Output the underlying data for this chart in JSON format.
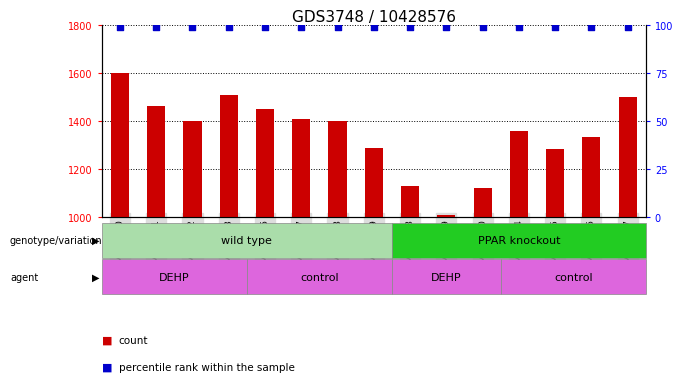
{
  "title": "GDS3748 / 10428576",
  "samples": [
    "GSM461980",
    "GSM461981",
    "GSM461982",
    "GSM461983",
    "GSM461976",
    "GSM461977",
    "GSM461978",
    "GSM461979",
    "GSM461988",
    "GSM461989",
    "GSM461990",
    "GSM461984",
    "GSM461985",
    "GSM461986",
    "GSM461987"
  ],
  "counts": [
    1600,
    1465,
    1400,
    1510,
    1450,
    1410,
    1400,
    1290,
    1130,
    1010,
    1120,
    1360,
    1285,
    1335,
    1500
  ],
  "percentile_ranks": [
    99,
    99,
    99,
    99,
    99,
    99,
    99,
    99,
    99,
    99,
    99,
    99,
    99,
    99,
    99
  ],
  "ylim_left": [
    1000,
    1800
  ],
  "ylim_right": [
    0,
    100
  ],
  "yticks_left": [
    1000,
    1200,
    1400,
    1600,
    1800
  ],
  "yticks_right": [
    0,
    25,
    50,
    75,
    100
  ],
  "bar_color": "#cc0000",
  "dot_color": "#0000cc",
  "bar_bottom": 1000,
  "genotype_labels": [
    {
      "text": "wild type",
      "start": 0,
      "end": 8,
      "color": "#aaddaa"
    },
    {
      "text": "PPAR knockout",
      "start": 8,
      "end": 15,
      "color": "#22cc22"
    }
  ],
  "agent_labels": [
    {
      "text": "DEHP",
      "start": 0,
      "end": 4,
      "color": "#dd66dd"
    },
    {
      "text": "control",
      "start": 4,
      "end": 8,
      "color": "#dd66dd"
    },
    {
      "text": "DEHP",
      "start": 8,
      "end": 11,
      "color": "#dd66dd"
    },
    {
      "text": "control",
      "start": 11,
      "end": 15,
      "color": "#dd66dd"
    }
  ],
  "left_label_genotype": "genotype/variation",
  "left_label_agent": "agent",
  "legend_count": "count",
  "legend_percentile": "percentile rank within the sample",
  "title_fontsize": 11,
  "tick_fontsize": 7,
  "bar_width": 0.5,
  "xticklabel_fontsize": 6.5,
  "background_color": "#ffffff"
}
